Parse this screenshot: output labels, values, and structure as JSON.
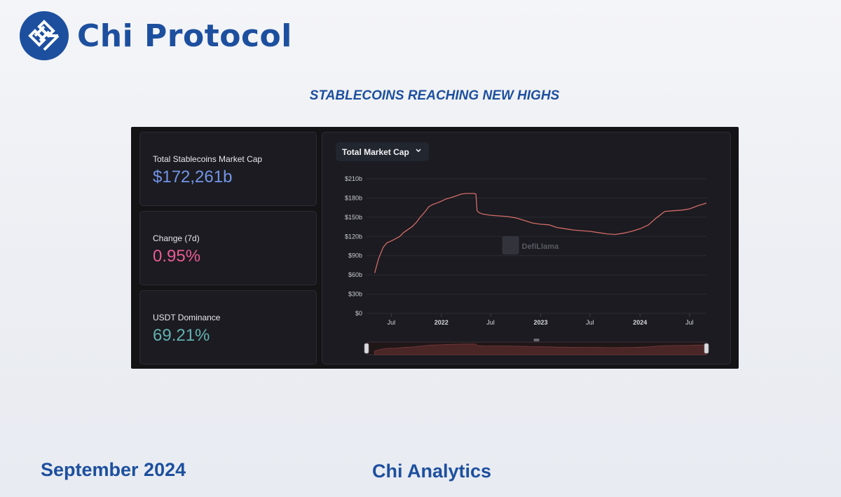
{
  "brand": {
    "name": "Chi Protocol",
    "logo_icon": "chi-logo-icon",
    "color": "#1d4f9f"
  },
  "headline": "STABLECOINS REACHING NEW HIGHS",
  "stats": [
    {
      "label": "Total Stablecoins Market Cap",
      "value": "$172,261b",
      "color": "#7295e6"
    },
    {
      "label": "Change (7d)",
      "value": "0.95%",
      "color": "#ec5a94"
    },
    {
      "label": "USDT Dominance",
      "value": "69.21%",
      "color": "#62b2b0"
    }
  ],
  "chart_panel": {
    "dropdown_label": "Total Market Cap",
    "dropdown_icon": "chevron-down-icon",
    "watermark": "DefiLlama",
    "watermark_icon": "llama-icon"
  },
  "chart_data": {
    "type": "line",
    "series": [
      {
        "line_color": "#d46b66",
        "points": [
          [
            "2021-05-01",
            63
          ],
          [
            "2021-05-15",
            85
          ],
          [
            "2021-06-01",
            103
          ],
          [
            "2021-06-15",
            110
          ],
          [
            "2021-07-01",
            113
          ],
          [
            "2021-07-15",
            116
          ],
          [
            "2021-08-01",
            120
          ],
          [
            "2021-08-15",
            126
          ],
          [
            "2021-09-01",
            131
          ],
          [
            "2021-09-15",
            135
          ],
          [
            "2021-10-01",
            142
          ],
          [
            "2021-10-15",
            150
          ],
          [
            "2021-11-01",
            158
          ],
          [
            "2021-11-15",
            166
          ],
          [
            "2021-12-01",
            170
          ],
          [
            "2021-12-15",
            172
          ],
          [
            "2022-01-01",
            175
          ],
          [
            "2022-01-15",
            178
          ],
          [
            "2022-02-01",
            180
          ],
          [
            "2022-02-15",
            182
          ],
          [
            "2022-03-01",
            184
          ],
          [
            "2022-03-15",
            186
          ],
          [
            "2022-04-01",
            187
          ],
          [
            "2022-04-15",
            187
          ],
          [
            "2022-05-01",
            187
          ],
          [
            "2022-05-08",
            186
          ],
          [
            "2022-05-12",
            160
          ],
          [
            "2022-05-20",
            157
          ],
          [
            "2022-06-01",
            155
          ],
          [
            "2022-07-01",
            153
          ],
          [
            "2022-08-01",
            152
          ],
          [
            "2022-09-01",
            151
          ],
          [
            "2022-10-01",
            149
          ],
          [
            "2022-11-01",
            145
          ],
          [
            "2022-12-01",
            141
          ],
          [
            "2023-01-01",
            139
          ],
          [
            "2023-02-01",
            138
          ],
          [
            "2023-03-01",
            134
          ],
          [
            "2023-04-01",
            132
          ],
          [
            "2023-05-01",
            130
          ],
          [
            "2023-06-01",
            129
          ],
          [
            "2023-07-01",
            128
          ],
          [
            "2023-08-01",
            126
          ],
          [
            "2023-09-01",
            124
          ],
          [
            "2023-10-01",
            123
          ],
          [
            "2023-11-01",
            125
          ],
          [
            "2023-12-01",
            128
          ],
          [
            "2024-01-01",
            132
          ],
          [
            "2024-02-01",
            138
          ],
          [
            "2024-03-01",
            149
          ],
          [
            "2024-04-01",
            159
          ],
          [
            "2024-05-01",
            160
          ],
          [
            "2024-06-01",
            161
          ],
          [
            "2024-07-01",
            163
          ],
          [
            "2024-08-01",
            168
          ],
          [
            "2024-09-01",
            172
          ]
        ]
      }
    ],
    "x_range": [
      "2021-04-01",
      "2024-09-01"
    ],
    "x_ticks": [
      {
        "date": "2021-07-01",
        "label": "Jul",
        "bold": false
      },
      {
        "date": "2022-01-01",
        "label": "2022",
        "bold": true
      },
      {
        "date": "2022-07-01",
        "label": "Jul",
        "bold": false
      },
      {
        "date": "2023-01-01",
        "label": "2023",
        "bold": true
      },
      {
        "date": "2023-07-01",
        "label": "Jul",
        "bold": false
      },
      {
        "date": "2024-01-01",
        "label": "2024",
        "bold": true
      },
      {
        "date": "2024-07-01",
        "label": "Jul",
        "bold": false
      }
    ],
    "y_ticks": [
      {
        "value": 0,
        "label": "$0"
      },
      {
        "value": 30,
        "label": "$30b"
      },
      {
        "value": 60,
        "label": "$60b"
      },
      {
        "value": 90,
        "label": "$90b"
      },
      {
        "value": 120,
        "label": "$120b"
      },
      {
        "value": 150,
        "label": "$150b"
      },
      {
        "value": 180,
        "label": "$180b"
      },
      {
        "value": 210,
        "label": "$210b"
      }
    ],
    "ylim": [
      0,
      210
    ],
    "grid": true,
    "brush": true
  },
  "footer": {
    "date": "September 2024",
    "org": "Chi Analytics"
  }
}
